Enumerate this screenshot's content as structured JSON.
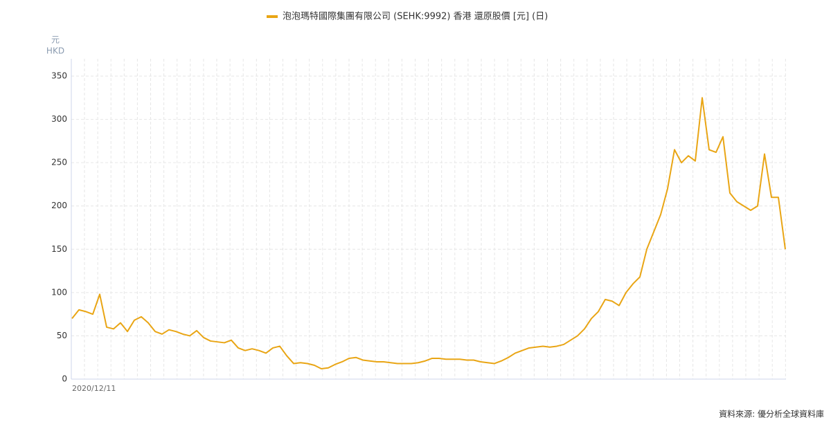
{
  "chart_data": {
    "type": "line",
    "legend": "泡泡瑪特國際集團有限公司 (SEHK:9992) 香港 還原股價 [元] (日)",
    "y_unit": "元",
    "y_label": "HKD",
    "source": "資料來源: 優分析全球資料庫",
    "categories": [
      "2020/12/11",
      null,
      null,
      null,
      null,
      null,
      null,
      null,
      null,
      null,
      null,
      null,
      null,
      null,
      null,
      null,
      null,
      null,
      null,
      null,
      null,
      null,
      null,
      null,
      null,
      null,
      null,
      null,
      null,
      null,
      null,
      null,
      null,
      null,
      null,
      null,
      null,
      null,
      null,
      null,
      null,
      null,
      null,
      null,
      null,
      null,
      null,
      null,
      null,
      null,
      null,
      null,
      null,
      null,
      null,
      null,
      null,
      null,
      null,
      null,
      null,
      null,
      null,
      null,
      null,
      null,
      null,
      null,
      null,
      null,
      null,
      null,
      null,
      null,
      null,
      null,
      null,
      null,
      null,
      null,
      null,
      null,
      null,
      null,
      null,
      null,
      null,
      null,
      null,
      null,
      null,
      null,
      null,
      null,
      null,
      null,
      null,
      null,
      null,
      null,
      null,
      null,
      null,
      null
    ],
    "series": [
      {
        "name": "泡泡瑪特國際集團有限公司 (SEHK:9992) 香港 還原股價 [元] (日)",
        "color": "#e9a514",
        "values": [
          70,
          80,
          78,
          75,
          98,
          60,
          58,
          65,
          55,
          68,
          72,
          65,
          55,
          52,
          57,
          55,
          52,
          50,
          56,
          48,
          44,
          43,
          42,
          45,
          36,
          33,
          35,
          33,
          30,
          36,
          38,
          27,
          18,
          19,
          18,
          16,
          12,
          13,
          17,
          20,
          24,
          25,
          22,
          21,
          20,
          20,
          19,
          18,
          18,
          18,
          19,
          21,
          24,
          24,
          23,
          23,
          23,
          22,
          22,
          20,
          19,
          18,
          21,
          25,
          30,
          33,
          36,
          37,
          38,
          37,
          38,
          40,
          45,
          50,
          58,
          70,
          78,
          92,
          90,
          85,
          100,
          110,
          118,
          150,
          170,
          190,
          220,
          265,
          250,
          258,
          252,
          325,
          265,
          262,
          280,
          215,
          205,
          200,
          195,
          200,
          260,
          210,
          210,
          150
        ]
      }
    ],
    "ylim": [
      0,
      370
    ],
    "yticks": [
      0,
      50,
      100,
      150,
      200,
      250,
      300,
      350
    ],
    "grid": true
  }
}
